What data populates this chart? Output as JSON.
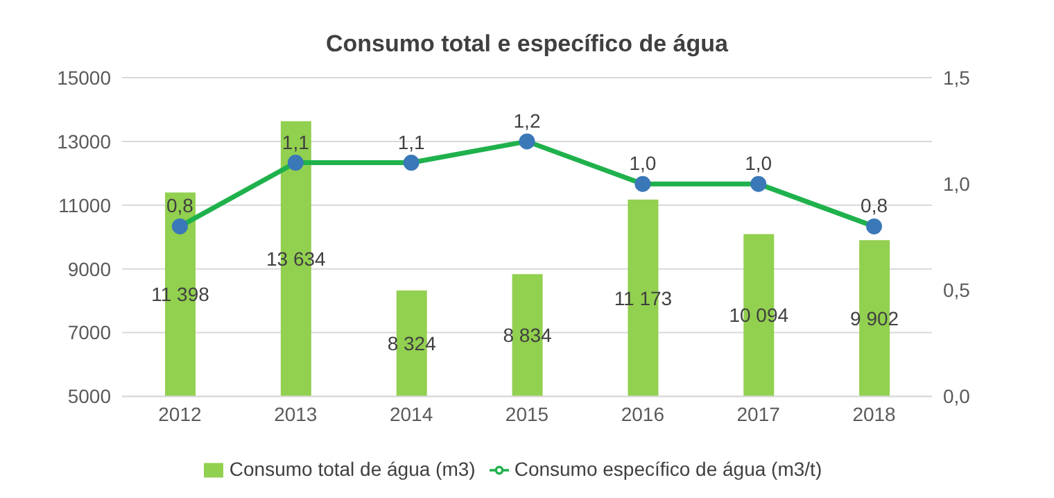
{
  "chart_data": {
    "type": "bar",
    "title": "Consumo total e específico  de água",
    "categories": [
      "2012",
      "2013",
      "2014",
      "2015",
      "2016",
      "2017",
      "2018"
    ],
    "series": [
      {
        "name": "Consumo total de água (m3)",
        "color": "#92d050",
        "values": [
          11398,
          13634,
          8324,
          8834,
          11173,
          10094,
          9902
        ],
        "value_labels": [
          "11 398",
          "13 634",
          "8 324",
          "8 834",
          "11 173",
          "10 094",
          "9 902"
        ]
      },
      {
        "name": "Consumo específico de água (m3/t)",
        "type": "line",
        "axis": "y2",
        "color": "#1fb14c",
        "values": [
          0.8,
          1.1,
          1.1,
          1.2,
          1.0,
          1.0,
          0.8
        ],
        "value_labels": [
          "0,8",
          "1,1",
          "1,1",
          "1,2",
          "1,0",
          "1,0",
          "0,8"
        ]
      }
    ],
    "ylim": [
      5000,
      15000
    ],
    "yticks": [
      5000,
      7000,
      9000,
      11000,
      13000,
      15000
    ],
    "y2lim": [
      0,
      1.5
    ],
    "y2ticks": [
      {
        "value": 0,
        "label": "0,0"
      },
      {
        "value": 0.5,
        "label": "0,5"
      },
      {
        "value": 1,
        "label": "1,0"
      },
      {
        "value": 1.5,
        "label": "1,5"
      }
    ],
    "grid": "y",
    "legend": "bottom",
    "marker": "circle",
    "line_style": "solid"
  }
}
